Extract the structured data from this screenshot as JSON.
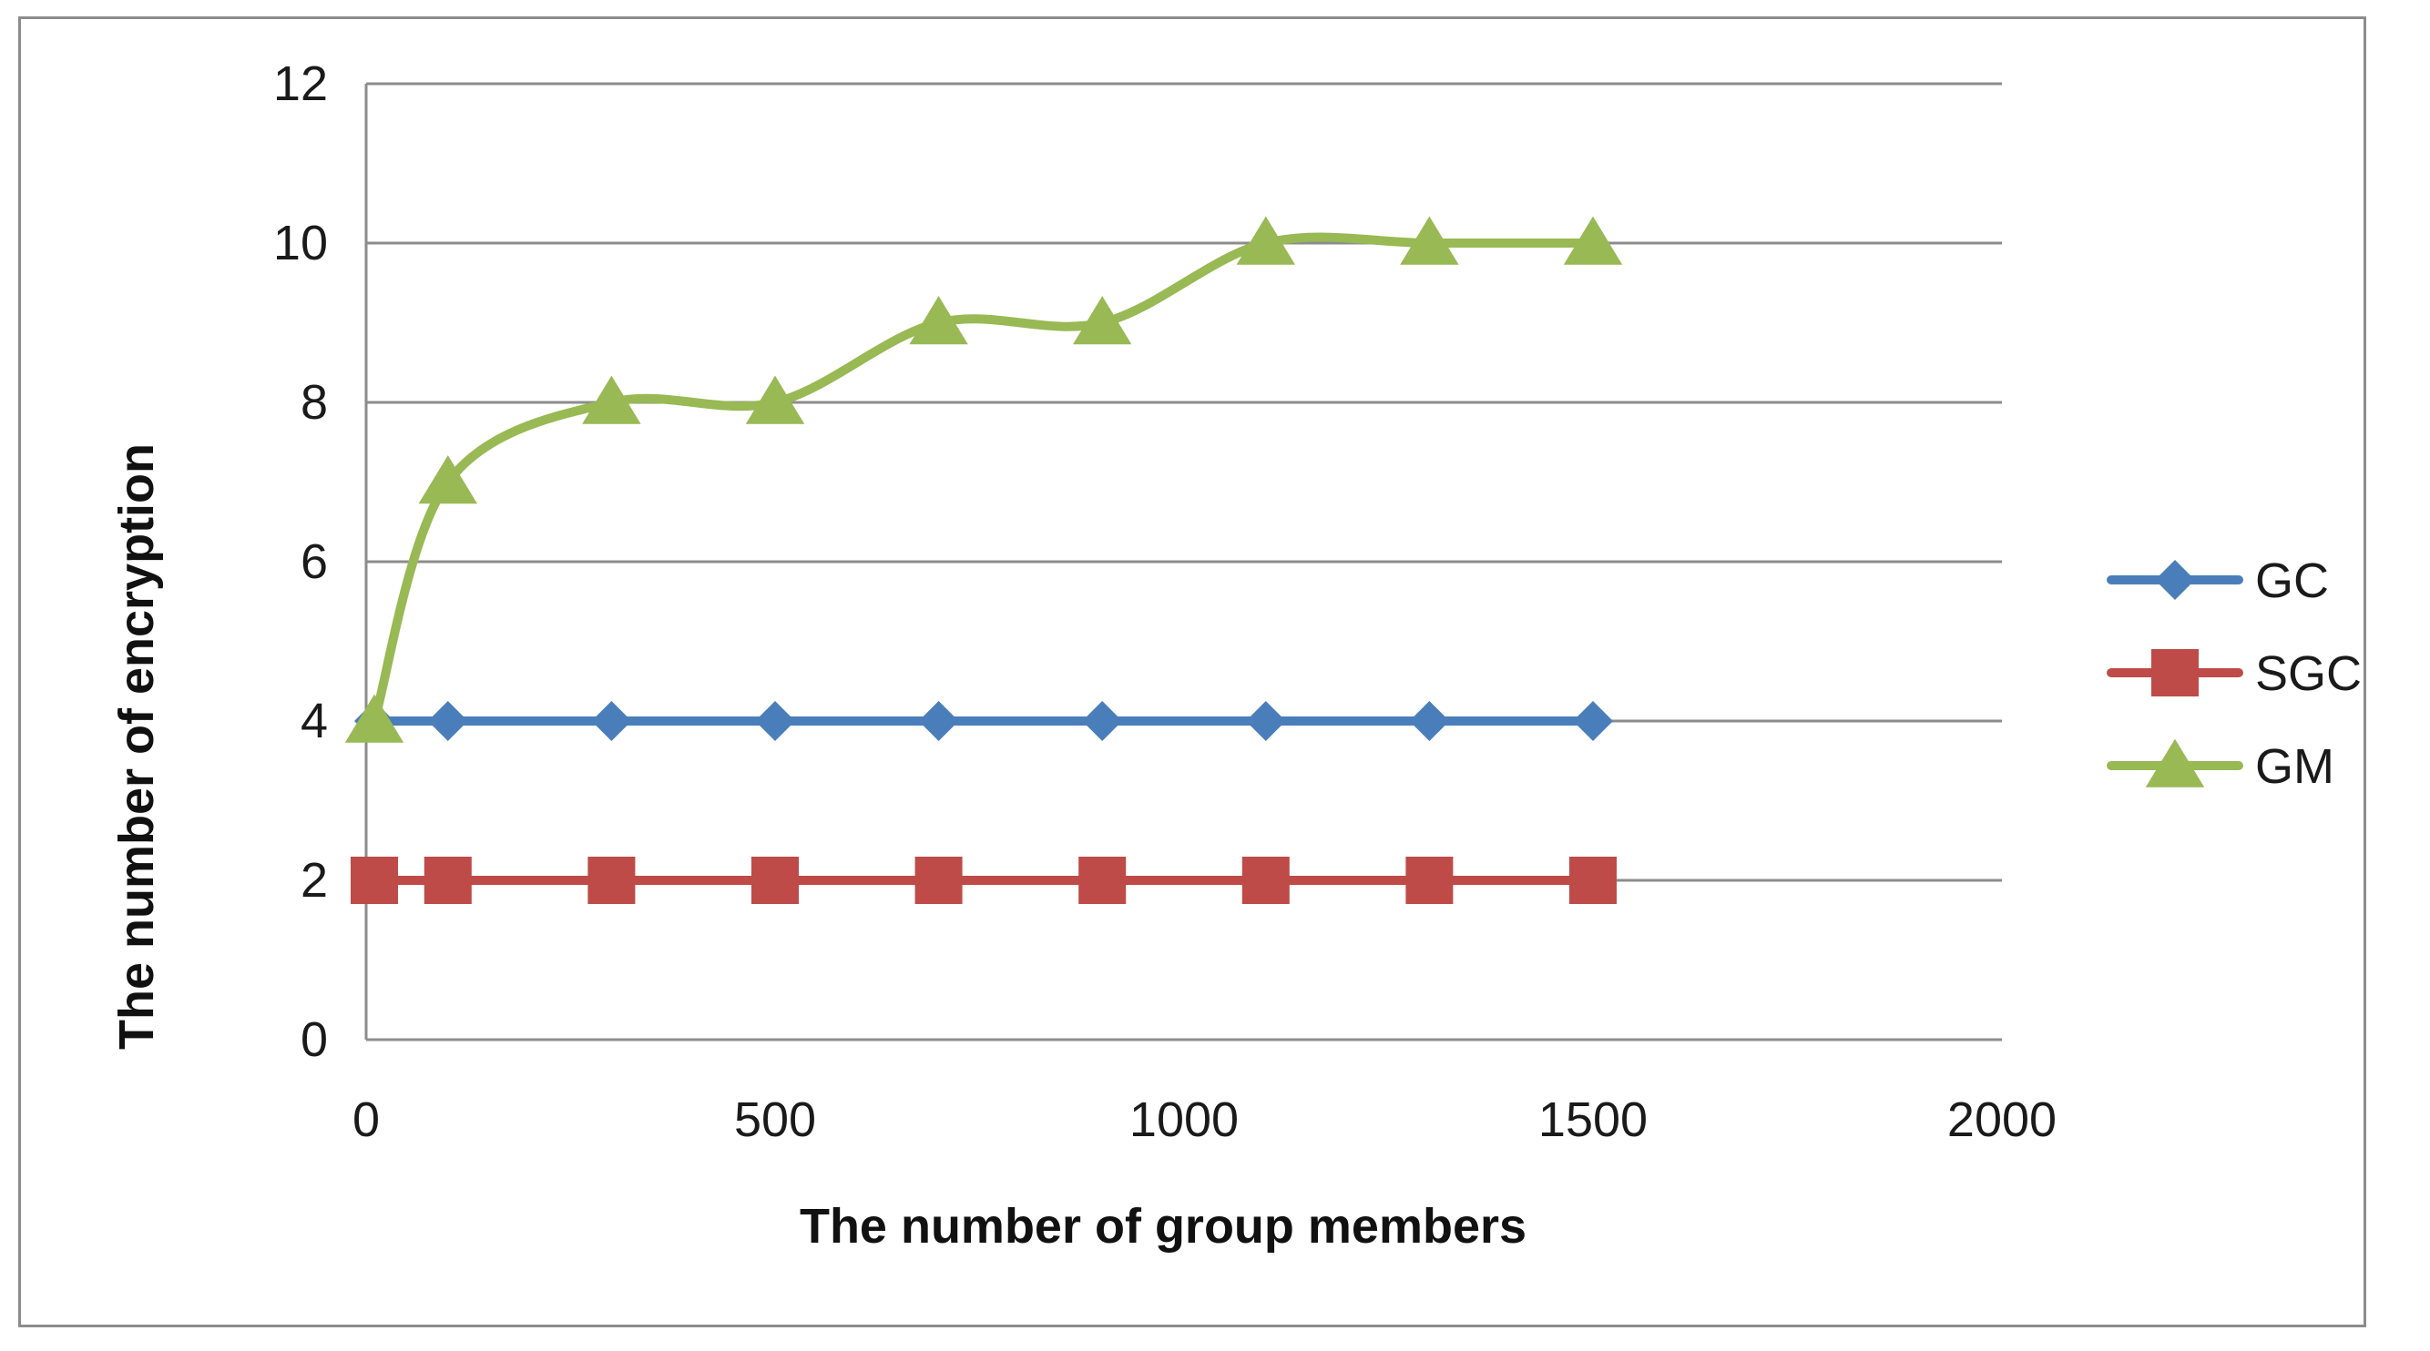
{
  "chart_data": {
    "type": "line",
    "title": "",
    "xlabel": "The number of group members",
    "ylabel": "The number of encryption",
    "xlim": [
      0,
      2000
    ],
    "ylim": [
      0,
      12
    ],
    "x_ticks": [
      "0",
      "500",
      "1000",
      "1500",
      "2000"
    ],
    "y_ticks": [
      "0",
      "2",
      "4",
      "6",
      "8",
      "10",
      "12"
    ],
    "grid": "horizontal",
    "legend_position": "right",
    "x": [
      10,
      100,
      300,
      500,
      700,
      900,
      1100,
      1300,
      1500
    ],
    "series": [
      {
        "name": "GC",
        "color": "#4a7ebb",
        "marker": "diamond",
        "smooth": false,
        "values": [
          4,
          4,
          4,
          4,
          4,
          4,
          4,
          4,
          4
        ]
      },
      {
        "name": "SGC",
        "color": "#be4b48",
        "marker": "square",
        "smooth": false,
        "values": [
          2,
          2,
          2,
          2,
          2,
          2,
          2,
          2,
          2
        ]
      },
      {
        "name": "GM",
        "color": "#98b954",
        "marker": "triangle",
        "smooth": true,
        "values": [
          4,
          7,
          8,
          8,
          9,
          9,
          10,
          10,
          10
        ]
      }
    ]
  }
}
